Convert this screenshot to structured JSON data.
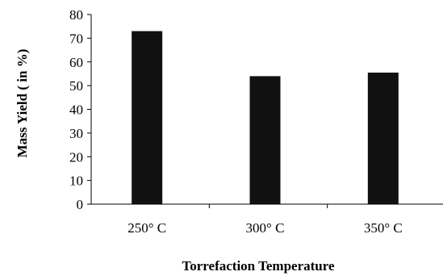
{
  "chart_data": {
    "type": "bar",
    "title": "",
    "xlabel": "Torrefaction Temperature",
    "ylabel": "Mass Yield ( in %)",
    "categories": [
      "250° C",
      "300° C",
      "350° C"
    ],
    "values": [
      73,
      54,
      55.5
    ],
    "ylim": [
      0,
      80
    ],
    "yticks": [
      0,
      10,
      20,
      30,
      40,
      50,
      60,
      70,
      80
    ],
    "yticklabels": [
      "0",
      "10",
      "20",
      "30",
      "40",
      "50",
      "60",
      "70",
      "80"
    ],
    "grid": false,
    "legend": "none",
    "bar_color": "#111111"
  }
}
